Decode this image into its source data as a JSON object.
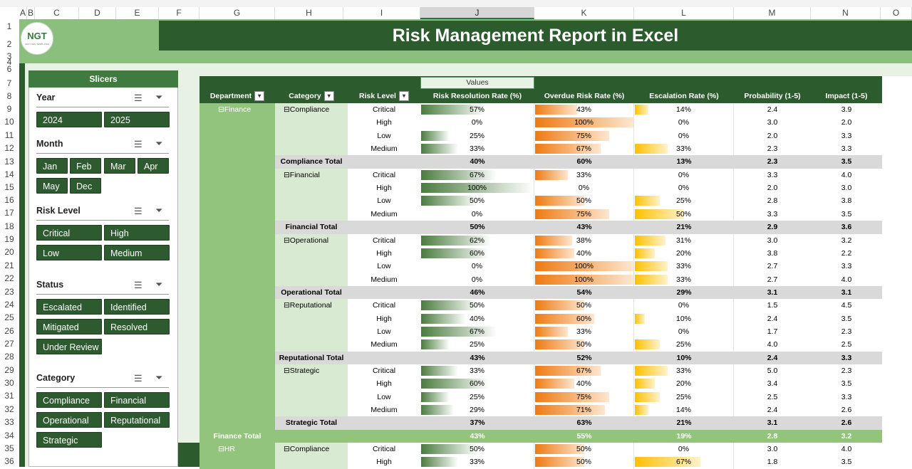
{
  "sheet": {
    "columns": [
      "A",
      "B",
      "C",
      "D",
      "E",
      "F",
      "G",
      "H",
      "I",
      "J",
      "K",
      "L",
      "M",
      "N",
      "O"
    ],
    "rows": [
      "1",
      "2",
      "3",
      "4",
      "6",
      "7",
      "8",
      "9",
      "10",
      "11",
      "12",
      "13",
      "14",
      "15",
      "16",
      "17",
      "18",
      "19",
      "20",
      "21",
      "22",
      "23",
      "24",
      "25",
      "26",
      "27",
      "28",
      "29",
      "30",
      "31",
      "32",
      "33",
      "34",
      "35",
      "36"
    ]
  },
  "logo": {
    "text": "NGT",
    "subtext": "NEXT GEN TEMPLATES"
  },
  "title": "Risk Management Report in Excel",
  "slicers": {
    "header": "Slicers",
    "groups": [
      {
        "title": "Year",
        "items": [
          "2024",
          "2025"
        ]
      },
      {
        "title": "Month",
        "items": [
          "Jan",
          "Feb",
          "Mar",
          "Apr",
          "May",
          "Dec"
        ]
      },
      {
        "title": "Risk Level",
        "items": [
          "Critical",
          "High",
          "Low",
          "Medium"
        ]
      },
      {
        "title": "Status",
        "items": [
          "Escalated",
          "Identified",
          "Mitigated",
          "Resolved",
          "Under Review"
        ]
      },
      {
        "title": "Category",
        "items": [
          "Compliance",
          "Financial",
          "Operational",
          "Reputational",
          "Strategic"
        ]
      }
    ]
  },
  "pivot": {
    "values_label": "Values",
    "headers": [
      "Department",
      "Category",
      "Risk Level",
      "Risk Resolution Rate (%)",
      "Overdue Risk Rate (%)",
      "Escalation Rate (%)",
      "Probability (1-5)",
      "Impact (1-5)"
    ],
    "colors": {
      "header": "#2c5b2d",
      "group": "#d9ead3",
      "dept": "#93c47d",
      "subtotal": "#d9d9d9",
      "total": "#93c47d"
    },
    "rows": [
      {
        "type": "d",
        "dept": "Finance",
        "cat": "Compliance",
        "lvl": "Critical",
        "rr": "57%",
        "rrv": 57,
        "od": "43%",
        "odv": 43,
        "es": "14%",
        "esv": 14,
        "p": "2.4",
        "i": "3.9"
      },
      {
        "type": "d",
        "lvl": "High",
        "rr": "0%",
        "rrv": 0,
        "od": "100%",
        "odv": 100,
        "es": "0%",
        "esv": 0,
        "p": "3.0",
        "i": "2.0"
      },
      {
        "type": "d",
        "lvl": "Low",
        "rr": "25%",
        "rrv": 25,
        "od": "75%",
        "odv": 75,
        "es": "0%",
        "esv": 0,
        "p": "2.0",
        "i": "3.3"
      },
      {
        "type": "d",
        "lvl": "Medium",
        "rr": "33%",
        "rrv": 33,
        "od": "67%",
        "odv": 67,
        "es": "33%",
        "esv": 33,
        "p": "2.3",
        "i": "3.3"
      },
      {
        "type": "s",
        "label": "Compliance Total",
        "rr": "40%",
        "od": "60%",
        "es": "13%",
        "p": "2.3",
        "i": "3.5"
      },
      {
        "type": "d",
        "cat": "Financial",
        "lvl": "Critical",
        "rr": "67%",
        "rrv": 67,
        "od": "33%",
        "odv": 33,
        "es": "0%",
        "esv": 0,
        "p": "3.3",
        "i": "4.0"
      },
      {
        "type": "d",
        "lvl": "High",
        "rr": "100%",
        "rrv": 100,
        "od": "0%",
        "odv": 0,
        "es": "0%",
        "esv": 0,
        "p": "2.0",
        "i": "3.0"
      },
      {
        "type": "d",
        "lvl": "Low",
        "rr": "50%",
        "rrv": 50,
        "od": "50%",
        "odv": 50,
        "es": "25%",
        "esv": 25,
        "p": "2.8",
        "i": "3.8"
      },
      {
        "type": "d",
        "lvl": "Medium",
        "rr": "0%",
        "rrv": 0,
        "od": "75%",
        "odv": 75,
        "es": "50%",
        "esv": 50,
        "p": "3.3",
        "i": "3.5"
      },
      {
        "type": "s",
        "label": "Financial Total",
        "rr": "50%",
        "od": "43%",
        "es": "21%",
        "p": "2.9",
        "i": "3.6"
      },
      {
        "type": "d",
        "cat": "Operational",
        "lvl": "Critical",
        "rr": "62%",
        "rrv": 62,
        "od": "38%",
        "odv": 38,
        "es": "31%",
        "esv": 31,
        "p": "3.0",
        "i": "3.2"
      },
      {
        "type": "d",
        "lvl": "High",
        "rr": "60%",
        "rrv": 60,
        "od": "40%",
        "odv": 40,
        "es": "20%",
        "esv": 20,
        "p": "3.8",
        "i": "2.2"
      },
      {
        "type": "d",
        "lvl": "Low",
        "rr": "0%",
        "rrv": 0,
        "od": "100%",
        "odv": 100,
        "es": "33%",
        "esv": 33,
        "p": "2.7",
        "i": "3.3"
      },
      {
        "type": "d",
        "lvl": "Medium",
        "rr": "0%",
        "rrv": 0,
        "od": "100%",
        "odv": 100,
        "es": "33%",
        "esv": 33,
        "p": "2.7",
        "i": "4.0"
      },
      {
        "type": "s",
        "label": "Operational Total",
        "rr": "46%",
        "od": "54%",
        "es": "29%",
        "p": "3.1",
        "i": "3.1"
      },
      {
        "type": "d",
        "cat": "Reputational",
        "lvl": "Critical",
        "rr": "50%",
        "rrv": 50,
        "od": "50%",
        "odv": 50,
        "es": "0%",
        "esv": 0,
        "p": "1.5",
        "i": "4.5"
      },
      {
        "type": "d",
        "lvl": "High",
        "rr": "40%",
        "rrv": 40,
        "od": "60%",
        "odv": 60,
        "es": "10%",
        "esv": 10,
        "p": "2.4",
        "i": "3.5"
      },
      {
        "type": "d",
        "lvl": "Low",
        "rr": "67%",
        "rrv": 67,
        "od": "33%",
        "odv": 33,
        "es": "0%",
        "esv": 0,
        "p": "1.7",
        "i": "2.3"
      },
      {
        "type": "d",
        "lvl": "Medium",
        "rr": "25%",
        "rrv": 25,
        "od": "50%",
        "odv": 50,
        "es": "25%",
        "esv": 25,
        "p": "4.0",
        "i": "2.5"
      },
      {
        "type": "s",
        "label": "Reputational Total",
        "rr": "43%",
        "od": "52%",
        "es": "10%",
        "p": "2.4",
        "i": "3.3"
      },
      {
        "type": "d",
        "cat": "Strategic",
        "lvl": "Critical",
        "rr": "33%",
        "rrv": 33,
        "od": "67%",
        "odv": 67,
        "es": "33%",
        "esv": 33,
        "p": "5.0",
        "i": "2.3"
      },
      {
        "type": "d",
        "lvl": "High",
        "rr": "60%",
        "rrv": 60,
        "od": "40%",
        "odv": 40,
        "es": "20%",
        "esv": 20,
        "p": "3.4",
        "i": "3.5"
      },
      {
        "type": "d",
        "lvl": "Low",
        "rr": "25%",
        "rrv": 25,
        "od": "75%",
        "odv": 75,
        "es": "25%",
        "esv": 25,
        "p": "2.5",
        "i": "3.3"
      },
      {
        "type": "d",
        "lvl": "Medium",
        "rr": "29%",
        "rrv": 29,
        "od": "71%",
        "odv": 71,
        "es": "14%",
        "esv": 14,
        "p": "2.4",
        "i": "2.6"
      },
      {
        "type": "s",
        "label": "Strategic Total",
        "rr": "37%",
        "od": "63%",
        "es": "21%",
        "p": "3.1",
        "i": "2.6"
      },
      {
        "type": "t",
        "label": "Finance Total",
        "rr": "43%",
        "od": "55%",
        "es": "19%",
        "p": "2.8",
        "i": "3.2"
      },
      {
        "type": "d",
        "dept": "HR",
        "cat": "Compliance",
        "lvl": "Critical",
        "rr": "50%",
        "rrv": 50,
        "od": "50%",
        "odv": 50,
        "es": "0%",
        "esv": 0,
        "p": "3.0",
        "i": "4.0"
      },
      {
        "type": "d",
        "lvl": "High",
        "rr": "33%",
        "rrv": 33,
        "od": "50%",
        "odv": 50,
        "es": "67%",
        "esv": 67,
        "p": "1.8",
        "i": "3.5"
      }
    ]
  }
}
